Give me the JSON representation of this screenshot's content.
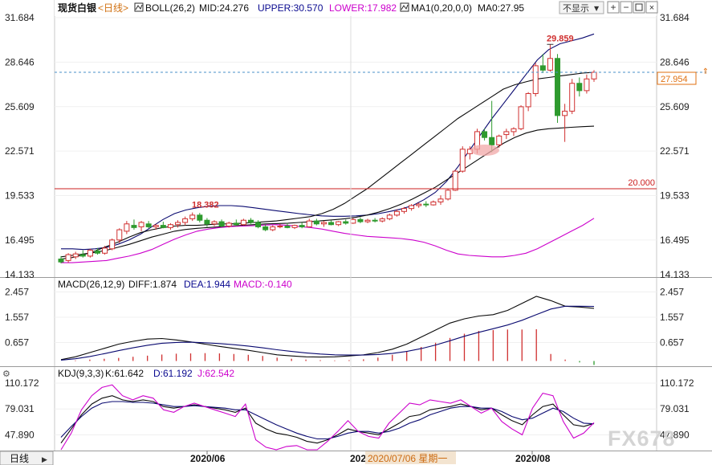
{
  "instrument": "现货白银",
  "period_link": "<日线>",
  "hide_button": "不显示",
  "boll_label": "BOLL(26,2)",
  "boll_mid": "MID:24.276",
  "boll_upper": "UPPER:30.570",
  "boll_lower": "LOWER:17.982",
  "ma_label": "MA1(0,20,0,0)",
  "ma_value": "MA0:27.95",
  "macd_label": "MACD(26,12,9)",
  "macd_diff": "DIFF:1.874",
  "macd_dea": "DEA:1.944",
  "macd_value": "MACD:-0.140",
  "kdj_label": "KDJ(9,3,3)",
  "kdj_k": "K:61.642",
  "kdj_d": "D:61.192",
  "kdj_j": "J:62.542",
  "bottom_tab": "日线",
  "bottom_date_partial": "202",
  "cursor_date": "2020/07/06 星期一",
  "watermark": "FX678",
  "colors": {
    "up": "#d03030",
    "down": "#2e9a2e",
    "upper": "#0a0a70",
    "mid": "#0a0a0a",
    "lower": "#cc00cc",
    "ma": "#0a0a0a",
    "price_line": "#4a90c8",
    "ref_line": "#cc2020",
    "diff": "#0a0a0a",
    "dea": "#0a0a70",
    "kdj_k": "#0a0a0a",
    "kdj_d": "#0a0a70",
    "kdj_j": "#cc00cc",
    "current": "#e07010"
  },
  "chart_data": [
    {
      "type": "candlestick",
      "panel": "price",
      "title": "现货白银 日线",
      "y_ticks": [
        "31.684",
        "28.646",
        "25.609",
        "22.571",
        "19.533",
        "16.495",
        "14.133"
      ],
      "ylim": [
        14.133,
        31.684
      ],
      "x_ticks": [
        "2020/06",
        "2020/08"
      ],
      "current_price": "27.954",
      "reference_line": {
        "value": "20.000"
      },
      "annotations": [
        "29.859",
        "18.382"
      ],
      "candles": [
        {
          "o": 15.2,
          "h": 15.4,
          "l": 14.9,
          "c": 15.0
        },
        {
          "o": 15.1,
          "h": 15.6,
          "l": 14.95,
          "c": 15.5
        },
        {
          "o": 15.35,
          "h": 15.7,
          "l": 15.2,
          "c": 15.55
        },
        {
          "o": 15.5,
          "h": 15.8,
          "l": 15.3,
          "c": 15.4
        },
        {
          "o": 15.4,
          "h": 15.9,
          "l": 15.3,
          "c": 15.8
        },
        {
          "o": 15.75,
          "h": 15.95,
          "l": 15.5,
          "c": 15.6
        },
        {
          "o": 15.6,
          "h": 16.1,
          "l": 15.5,
          "c": 15.95
        },
        {
          "o": 15.9,
          "h": 16.6,
          "l": 15.8,
          "c": 16.5
        },
        {
          "o": 16.5,
          "h": 17.3,
          "l": 16.3,
          "c": 17.2
        },
        {
          "o": 17.1,
          "h": 17.8,
          "l": 16.9,
          "c": 17.6
        },
        {
          "o": 17.5,
          "h": 17.9,
          "l": 17.2,
          "c": 17.35
        },
        {
          "o": 17.4,
          "h": 17.8,
          "l": 17.1,
          "c": 17.7
        },
        {
          "o": 17.6,
          "h": 17.8,
          "l": 17.3,
          "c": 17.4
        },
        {
          "o": 17.4,
          "h": 17.6,
          "l": 17.2,
          "c": 17.5
        },
        {
          "o": 17.5,
          "h": 17.75,
          "l": 17.3,
          "c": 17.35
        },
        {
          "o": 17.35,
          "h": 17.65,
          "l": 17.2,
          "c": 17.55
        },
        {
          "o": 17.55,
          "h": 17.85,
          "l": 17.35,
          "c": 17.7
        },
        {
          "o": 17.7,
          "h": 18.1,
          "l": 17.5,
          "c": 17.95
        },
        {
          "o": 17.95,
          "h": 18.38,
          "l": 17.8,
          "c": 18.2
        },
        {
          "o": 18.2,
          "h": 18.35,
          "l": 17.7,
          "c": 17.85
        },
        {
          "o": 17.85,
          "h": 18.0,
          "l": 17.4,
          "c": 17.6
        },
        {
          "o": 17.6,
          "h": 17.85,
          "l": 17.45,
          "c": 17.75
        },
        {
          "o": 17.75,
          "h": 17.9,
          "l": 17.35,
          "c": 17.45
        },
        {
          "o": 17.45,
          "h": 17.75,
          "l": 17.35,
          "c": 17.65
        },
        {
          "o": 17.65,
          "h": 17.9,
          "l": 17.45,
          "c": 17.55
        },
        {
          "o": 17.55,
          "h": 17.95,
          "l": 17.5,
          "c": 17.85
        },
        {
          "o": 17.85,
          "h": 18.0,
          "l": 17.6,
          "c": 17.7
        },
        {
          "o": 17.7,
          "h": 17.85,
          "l": 17.3,
          "c": 17.4
        },
        {
          "o": 17.4,
          "h": 17.55,
          "l": 17.1,
          "c": 17.2
        },
        {
          "o": 17.2,
          "h": 17.5,
          "l": 17.1,
          "c": 17.4
        },
        {
          "o": 17.4,
          "h": 17.6,
          "l": 17.3,
          "c": 17.45
        },
        {
          "o": 17.45,
          "h": 17.65,
          "l": 17.3,
          "c": 17.35
        },
        {
          "o": 17.35,
          "h": 17.55,
          "l": 17.25,
          "c": 17.5
        },
        {
          "o": 17.5,
          "h": 17.7,
          "l": 17.3,
          "c": 17.4
        },
        {
          "o": 17.4,
          "h": 17.95,
          "l": 17.35,
          "c": 17.8
        },
        {
          "o": 17.8,
          "h": 17.95,
          "l": 17.5,
          "c": 17.6
        },
        {
          "o": 17.6,
          "h": 17.8,
          "l": 17.4,
          "c": 17.7
        },
        {
          "o": 17.7,
          "h": 17.85,
          "l": 17.5,
          "c": 17.55
        },
        {
          "o": 17.55,
          "h": 17.8,
          "l": 17.45,
          "c": 17.75
        },
        {
          "o": 17.75,
          "h": 17.9,
          "l": 17.55,
          "c": 17.65
        },
        {
          "o": 17.65,
          "h": 18.0,
          "l": 17.6,
          "c": 17.9
        },
        {
          "o": 17.9,
          "h": 18.05,
          "l": 17.65,
          "c": 17.75
        },
        {
          "o": 17.75,
          "h": 17.95,
          "l": 17.65,
          "c": 17.85
        },
        {
          "o": 17.85,
          "h": 18.0,
          "l": 17.7,
          "c": 17.8
        },
        {
          "o": 17.8,
          "h": 18.05,
          "l": 17.7,
          "c": 17.95
        },
        {
          "o": 17.95,
          "h": 18.3,
          "l": 17.85,
          "c": 18.2
        },
        {
          "o": 18.2,
          "h": 18.6,
          "l": 18.1,
          "c": 18.45
        },
        {
          "o": 18.45,
          "h": 18.75,
          "l": 18.3,
          "c": 18.65
        },
        {
          "o": 18.65,
          "h": 18.95,
          "l": 18.5,
          "c": 18.85
        },
        {
          "o": 18.85,
          "h": 19.05,
          "l": 18.7,
          "c": 18.95
        },
        {
          "o": 18.95,
          "h": 19.15,
          "l": 18.75,
          "c": 18.9
        },
        {
          "o": 18.9,
          "h": 19.2,
          "l": 18.85,
          "c": 19.1
        },
        {
          "o": 19.1,
          "h": 19.55,
          "l": 18.9,
          "c": 19.3
        },
        {
          "o": 19.3,
          "h": 20.0,
          "l": 19.2,
          "c": 19.9
        },
        {
          "o": 19.9,
          "h": 21.3,
          "l": 19.85,
          "c": 21.2
        },
        {
          "o": 21.2,
          "h": 22.9,
          "l": 21.1,
          "c": 22.7
        },
        {
          "o": 22.4,
          "h": 22.9,
          "l": 22.0,
          "c": 22.7
        },
        {
          "o": 22.7,
          "h": 24.1,
          "l": 22.4,
          "c": 23.9
        },
        {
          "o": 23.9,
          "h": 24.1,
          "l": 23.3,
          "c": 23.5
        },
        {
          "o": 23.5,
          "h": 26.0,
          "l": 22.5,
          "c": 23.0
        },
        {
          "o": 23.0,
          "h": 23.7,
          "l": 22.8,
          "c": 23.6
        },
        {
          "o": 23.7,
          "h": 24.1,
          "l": 23.4,
          "c": 23.9
        },
        {
          "o": 23.9,
          "h": 24.2,
          "l": 23.6,
          "c": 24.1
        },
        {
          "o": 24.1,
          "h": 25.7,
          "l": 24.0,
          "c": 25.6
        },
        {
          "o": 25.6,
          "h": 26.6,
          "l": 25.3,
          "c": 26.5
        },
        {
          "o": 26.5,
          "h": 28.6,
          "l": 26.3,
          "c": 28.4
        },
        {
          "o": 28.4,
          "h": 29.2,
          "l": 27.9,
          "c": 28.1
        },
        {
          "o": 28.1,
          "h": 29.86,
          "l": 28.0,
          "c": 28.9
        },
        {
          "o": 28.9,
          "h": 29.2,
          "l": 24.5,
          "c": 25.0
        },
        {
          "o": 25.0,
          "h": 25.8,
          "l": 23.2,
          "c": 25.3
        },
        {
          "o": 25.3,
          "h": 27.5,
          "l": 25.1,
          "c": 27.2
        },
        {
          "o": 27.2,
          "h": 27.6,
          "l": 26.3,
          "c": 26.7
        },
        {
          "o": 26.7,
          "h": 27.8,
          "l": 26.5,
          "c": 27.5
        },
        {
          "o": 27.5,
          "h": 28.1,
          "l": 27.3,
          "c": 27.954
        }
      ],
      "series": [
        {
          "name": "UPPER",
          "values": [
            15.9,
            15.9,
            15.85,
            15.9,
            16.0,
            16.2,
            16.5,
            16.9,
            17.4,
            17.9,
            18.3,
            18.55,
            18.7,
            18.8,
            18.85,
            18.85,
            18.8,
            18.7,
            18.6,
            18.5,
            18.4,
            18.3,
            18.22,
            18.15,
            18.12,
            18.12,
            18.15,
            18.2,
            18.3,
            18.45,
            18.62,
            18.85,
            19.25,
            19.75,
            20.5,
            21.5,
            22.6,
            23.7,
            24.8,
            25.8,
            26.8,
            27.8,
            28.8,
            29.5,
            29.9,
            30.1,
            30.3,
            30.57
          ]
        },
        {
          "name": "MID",
          "values": [
            15.35,
            15.45,
            15.55,
            15.65,
            15.8,
            16.0,
            16.2,
            16.45,
            16.7,
            16.9,
            17.1,
            17.22,
            17.3,
            17.35,
            17.4,
            17.45,
            17.5,
            17.55,
            17.6,
            17.62,
            17.65,
            17.7,
            17.75,
            17.82,
            17.88,
            17.95,
            18.05,
            18.2,
            18.4,
            18.65,
            18.95,
            19.3,
            19.7,
            20.1,
            20.6,
            21.1,
            21.6,
            22.1,
            22.6,
            23.1,
            23.5,
            23.8,
            24.0,
            24.1,
            24.15,
            24.2,
            24.24,
            24.276
          ]
        },
        {
          "name": "LOWER",
          "values": [
            14.95,
            14.95,
            15.0,
            15.05,
            15.1,
            15.25,
            15.4,
            15.6,
            15.85,
            16.2,
            16.55,
            16.85,
            17.1,
            17.25,
            17.35,
            17.42,
            17.45,
            17.48,
            17.52,
            17.55,
            17.5,
            17.42,
            17.35,
            17.25,
            17.1,
            16.95,
            16.85,
            16.75,
            16.7,
            16.65,
            16.6,
            16.5,
            16.35,
            16.1,
            15.8,
            15.55,
            15.45,
            15.4,
            15.35,
            15.35,
            15.45,
            15.6,
            15.9,
            16.3,
            16.7,
            17.1,
            17.5,
            17.982
          ]
        },
        {
          "name": "MA0",
          "values": [
            15.2,
            15.3,
            15.5,
            15.75,
            16.05,
            16.35,
            16.7,
            17.0,
            17.2,
            17.35,
            17.45,
            17.5,
            17.5,
            17.55,
            17.6,
            17.6,
            17.65,
            17.7,
            17.75,
            17.8,
            17.9,
            18.0,
            18.1,
            18.3,
            18.6,
            19.0,
            19.5,
            20.0,
            20.6,
            21.2,
            21.8,
            22.4,
            23.0,
            23.6,
            24.2,
            24.8,
            25.3,
            25.8,
            26.3,
            26.8,
            27.1,
            27.3,
            27.5,
            27.6,
            27.7,
            27.8,
            27.9,
            27.95
          ]
        }
      ]
    },
    {
      "type": "bar+line",
      "panel": "macd",
      "title": "MACD(26,12,9)",
      "y_ticks": [
        "2.457",
        "1.557",
        "0.657"
      ],
      "ylim": [
        0,
        2.457
      ],
      "series": [
        {
          "name": "DIFF",
          "values": [
            0.05,
            0.15,
            0.3,
            0.45,
            0.6,
            0.7,
            0.78,
            0.8,
            0.75,
            0.68,
            0.6,
            0.52,
            0.45,
            0.38,
            0.3,
            0.22,
            0.18,
            0.15,
            0.14,
            0.15,
            0.18,
            0.22,
            0.3,
            0.42,
            0.6,
            0.85,
            1.1,
            1.35,
            1.5,
            1.6,
            1.65,
            1.8,
            2.05,
            2.3,
            2.15,
            1.95,
            1.92,
            1.874
          ]
        },
        {
          "name": "DEA",
          "values": [
            0.03,
            0.08,
            0.16,
            0.26,
            0.37,
            0.47,
            0.56,
            0.63,
            0.66,
            0.67,
            0.65,
            0.62,
            0.58,
            0.53,
            0.47,
            0.4,
            0.34,
            0.29,
            0.25,
            0.22,
            0.21,
            0.21,
            0.23,
            0.27,
            0.34,
            0.44,
            0.57,
            0.72,
            0.88,
            1.02,
            1.15,
            1.28,
            1.45,
            1.65,
            1.85,
            1.95,
            1.95,
            1.944
          ]
        },
        {
          "name": "MACD",
          "values": [
            0.0,
            0.02,
            0.05,
            0.08,
            0.11,
            0.15,
            0.19,
            0.23,
            0.26,
            0.27,
            0.28,
            0.27,
            0.25,
            0.22,
            0.18,
            0.12,
            0.08,
            0.05,
            0.03,
            0.02,
            0.03,
            0.06,
            0.12,
            0.22,
            0.35,
            0.5,
            0.65,
            0.82,
            0.97,
            1.07,
            1.1,
            1.12,
            1.12,
            1.13,
            0.25,
            0.05,
            -0.05,
            -0.14
          ]
        }
      ]
    },
    {
      "type": "line",
      "panel": "kdj",
      "title": "KDJ(9,3,3)",
      "y_ticks": [
        "110.172",
        "79.031",
        "47.890"
      ],
      "ylim": [
        30,
        115
      ],
      "series": [
        {
          "name": "K",
          "values": [
            38,
            55,
            72,
            85,
            92,
            95,
            90,
            88,
            90,
            88,
            82,
            80,
            82,
            84,
            82,
            80,
            78,
            75,
            80,
            62,
            55,
            50,
            48,
            45,
            40,
            38,
            42,
            48,
            55,
            52,
            50,
            48,
            55,
            62,
            70,
            72,
            78,
            80,
            82,
            85,
            82,
            78,
            80,
            72,
            65,
            60,
            72,
            82,
            85,
            72,
            60,
            58,
            61.642
          ]
        },
        {
          "name": "D",
          "values": [
            45,
            58,
            70,
            80,
            86,
            88,
            88,
            87,
            87,
            86,
            84,
            82,
            82,
            83,
            82,
            81,
            80,
            78,
            78,
            72,
            66,
            60,
            55,
            50,
            46,
            43,
            43,
            46,
            50,
            52,
            52,
            50,
            52,
            56,
            62,
            66,
            72,
            76,
            80,
            82,
            82,
            80,
            80,
            76,
            70,
            66,
            68,
            74,
            80,
            76,
            68,
            62,
            61.192
          ]
        },
        {
          "name": "J",
          "values": [
            25,
            50,
            78,
            95,
            105,
            108,
            95,
            90,
            95,
            92,
            78,
            75,
            82,
            86,
            82,
            78,
            74,
            70,
            85,
            42,
            33,
            30,
            34,
            35,
            28,
            28,
            40,
            52,
            65,
            52,
            46,
            44,
            62,
            74,
            86,
            84,
            90,
            88,
            86,
            90,
            82,
            74,
            80,
            64,
            55,
            48,
            80,
            98,
            95,
            64,
            44,
            50,
            62.542
          ]
        }
      ]
    }
  ]
}
